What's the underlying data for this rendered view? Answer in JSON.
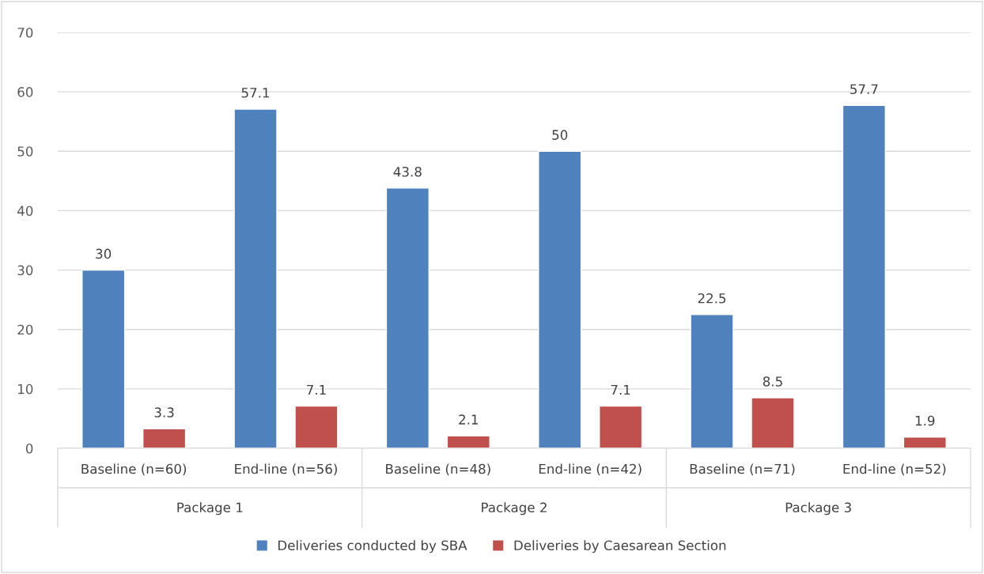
{
  "chart_data": {
    "type": "bar",
    "categories": [
      "Baseline (n=60)",
      "End-line (n=56)",
      "Baseline (n=48)",
      "End-line (n=42)",
      "Baseline (n=71)",
      "End-line (n=52)"
    ],
    "series": [
      {
        "name": "Deliveries conducted by SBA",
        "color": "#4f81bd",
        "values": [
          30,
          57.1,
          43.8,
          50,
          22.5,
          57.7
        ]
      },
      {
        "name": "Deliveries by Caesarean Section",
        "color": "#c0504d",
        "values": [
          3.3,
          7.1,
          2.1,
          7.1,
          8.5,
          1.9
        ]
      }
    ],
    "annotations": [
      "Package 1",
      "Package 2",
      "Package 3"
    ],
    "ylim": [
      0,
      70
    ],
    "yticks": [
      0,
      10,
      20,
      30,
      40,
      50,
      60,
      70
    ],
    "grid": "y",
    "legend": "bottom",
    "data_labels": true
  }
}
